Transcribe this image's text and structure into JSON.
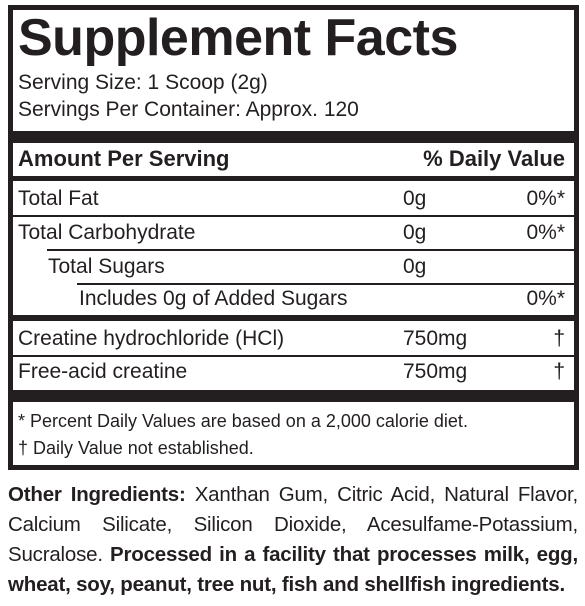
{
  "title": "Supplement Facts",
  "serving_size": "Serving Size: 1 Scoop (2g)",
  "servings_per_container": "Servings Per Container: Approx. 120",
  "header": {
    "amount_label": "Amount Per Serving",
    "dv_label": "% Daily Value"
  },
  "rows": [
    {
      "name": "Total Fat",
      "amount": "0g",
      "dv": "0%*"
    },
    {
      "name": "Total Carbohydrate",
      "amount": "0g",
      "dv": "0%*"
    },
    {
      "name": "Total Sugars",
      "amount": "0g",
      "dv": ""
    },
    {
      "name": "Includes 0g of Added Sugars",
      "amount": "",
      "dv": "0%*"
    },
    {
      "name": "Creatine hydrochloride (HCl)",
      "amount": "750mg",
      "dv": "†"
    },
    {
      "name": "Free-acid creatine",
      "amount": "750mg",
      "dv": "†"
    }
  ],
  "footnotes": {
    "percent_dv": "* Percent Daily Values are based on a 2,000 calorie diet.",
    "not_established": "† Daily Value not established."
  },
  "other_ingredients": {
    "label": "Other Ingredients:",
    "text": " Xanthan Gum, Citric Acid, Natural Flavor, Calcium Silicate, Silicon Dioxide, Acesulfame-Potassium, Sucralose. ",
    "allergen_statement": "Processed in a facility that processes milk, egg, wheat, soy, peanut, tree nut, fish and shellfish ingredients."
  }
}
